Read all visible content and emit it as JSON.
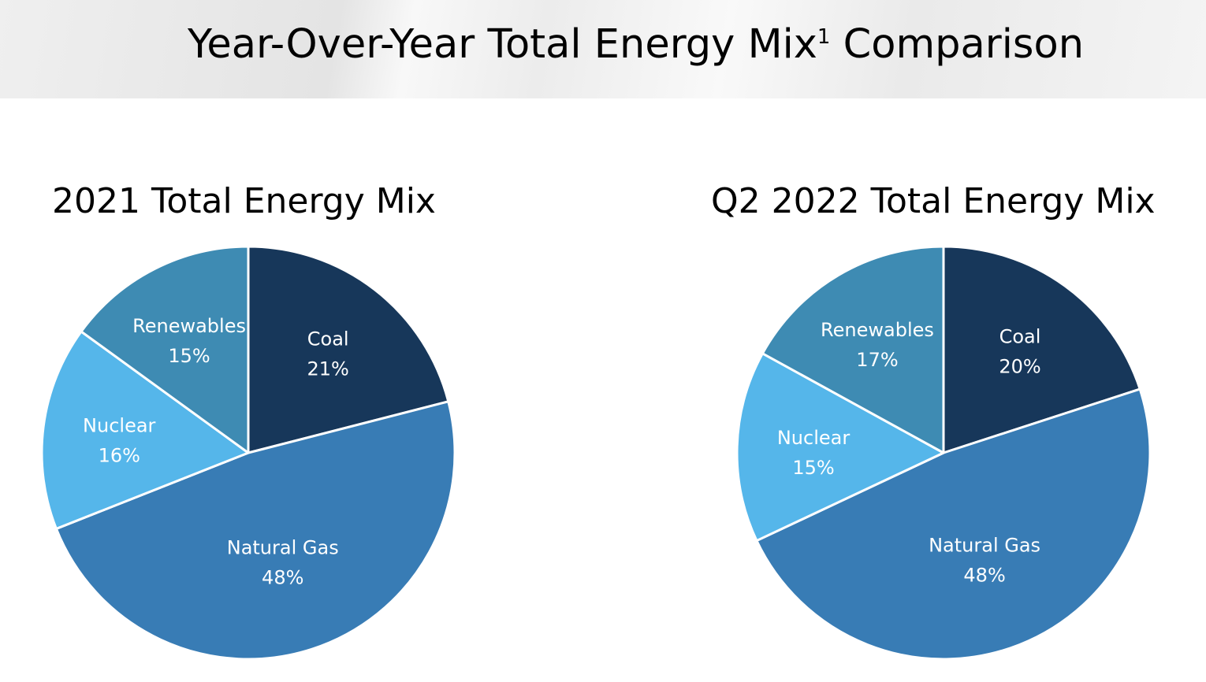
{
  "title": {
    "main": "Year-Over-Year Total Energy Mix",
    "superscript": "1",
    "suffix": " Comparison"
  },
  "colors": {
    "Coal": "#17375a",
    "Natural Gas": "#387cb5",
    "Nuclear": "#55b6ea",
    "Renewables": "#3e8bb3"
  },
  "chart_data": [
    {
      "type": "pie",
      "title": "2021 Total Energy Mix",
      "categories": [
        "Coal",
        "Natural Gas",
        "Nuclear",
        "Renewables"
      ],
      "values": [
        21,
        48,
        16,
        15
      ],
      "value_labels": [
        "21%",
        "48%",
        "16%",
        "15%"
      ]
    },
    {
      "type": "pie",
      "title": "Q2 2022 Total Energy Mix",
      "categories": [
        "Coal",
        "Natural Gas",
        "Nuclear",
        "Renewables"
      ],
      "values": [
        20,
        48,
        15,
        17
      ],
      "value_labels": [
        "20%",
        "48%",
        "15%",
        "17%"
      ]
    }
  ]
}
